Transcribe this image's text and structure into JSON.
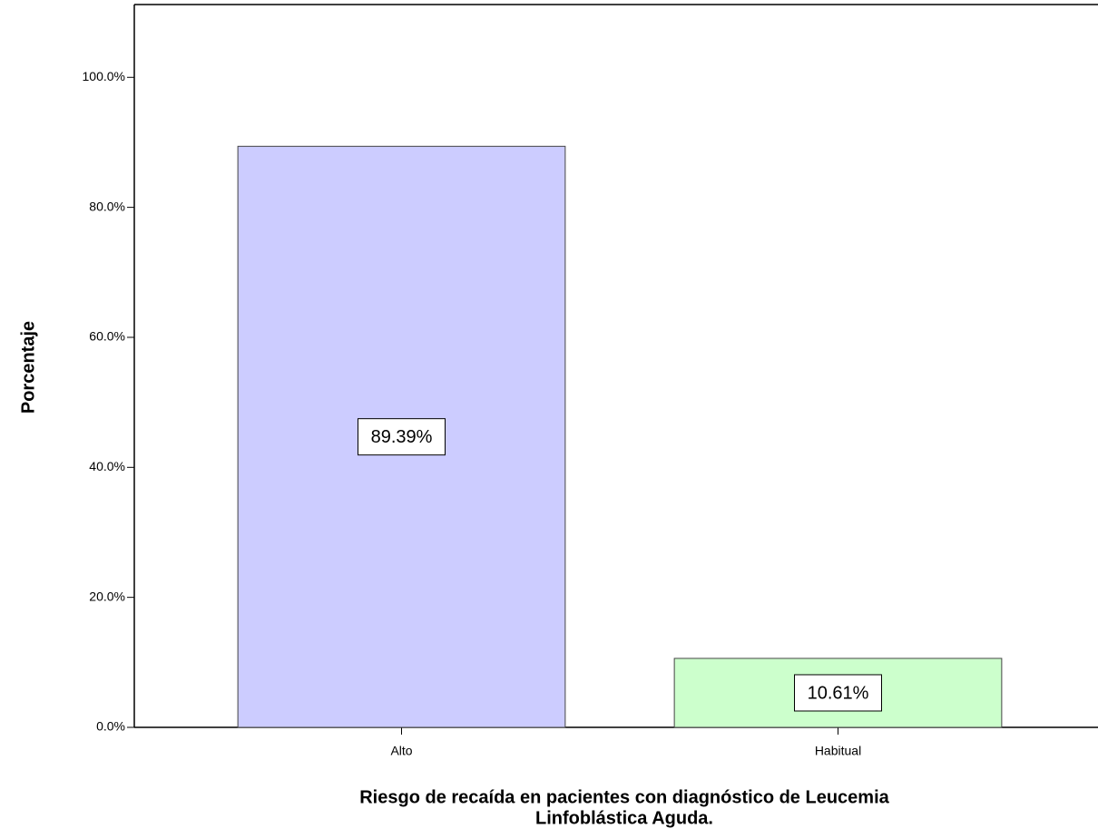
{
  "chart_data": {
    "type": "bar",
    "categories": [
      "Alto",
      "Habitual"
    ],
    "values": [
      89.39,
      10.61
    ],
    "value_labels": [
      "89.39%",
      "10.61%"
    ],
    "colors": [
      "#ccccff",
      "#ccffcc"
    ],
    "ylabel": "Porcentaje",
    "xlabel": [
      "Riesgo de recaída en pacientes con diagnóstico de Leucemia",
      "Linfoblástica Aguda."
    ],
    "ylim": [
      0,
      111.2
    ],
    "yticks": [
      {
        "value": 0,
        "label": "0.0%"
      },
      {
        "value": 20,
        "label": "20.0%"
      },
      {
        "value": 40,
        "label": "40.0%"
      },
      {
        "value": 60,
        "label": "60.0%"
      },
      {
        "value": 80,
        "label": "80.0%"
      },
      {
        "value": 100,
        "label": "100.0%"
      }
    ]
  }
}
